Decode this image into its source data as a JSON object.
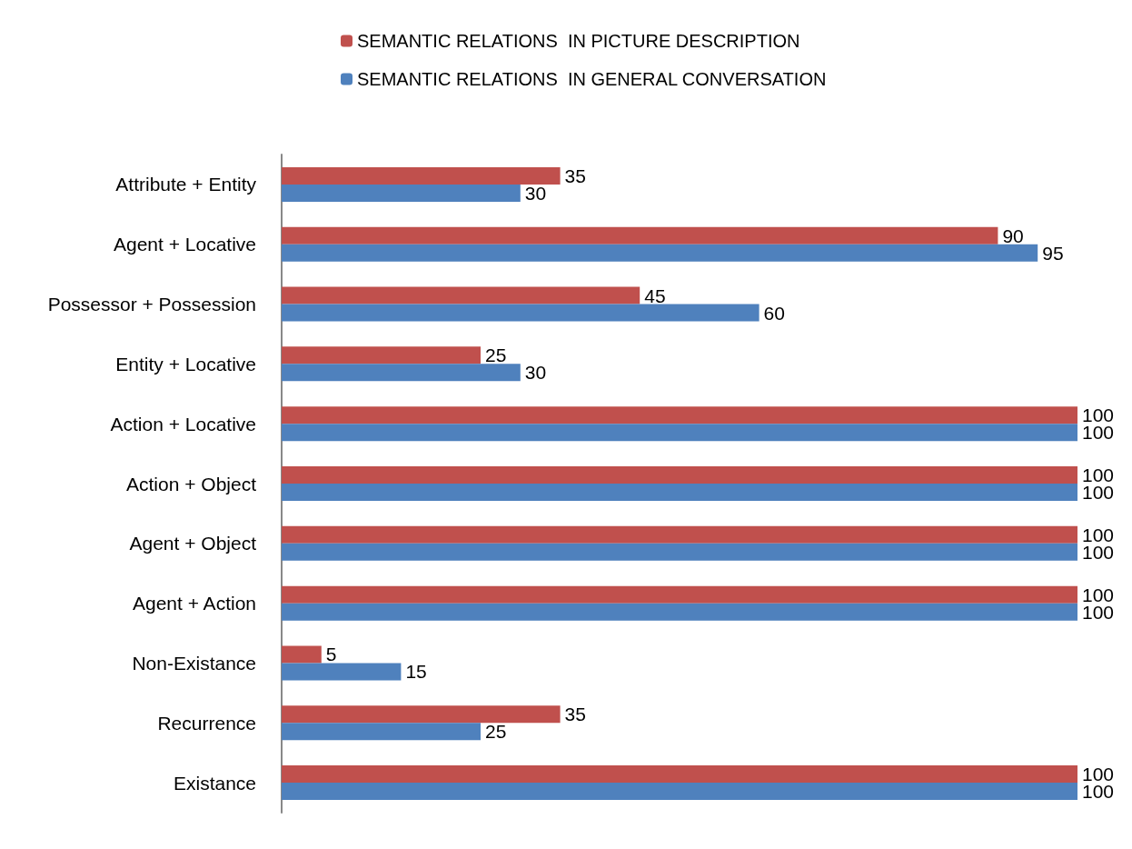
{
  "chart_data": {
    "type": "bar",
    "orientation": "horizontal",
    "categories": [
      "Attribute + Entity",
      "Agent + Locative",
      "Possessor + Possession",
      "Entity + Locative",
      "Action + Locative",
      "Action + Object",
      "Agent + Object",
      "Agent + Action",
      "Non-Existance",
      "Recurrence",
      "Existance"
    ],
    "series": [
      {
        "name": "SEMANTIC RELATIONS  IN PICTURE DESCRIPTION",
        "color": "#c0504d",
        "values": [
          35,
          90,
          45,
          25,
          100,
          100,
          100,
          100,
          5,
          35,
          100
        ]
      },
      {
        "name": "SEMANTIC RELATIONS  IN GENERAL CONVERSATION",
        "color": "#4f81bd",
        "values": [
          30,
          95,
          60,
          30,
          100,
          100,
          100,
          100,
          15,
          25,
          100
        ]
      }
    ],
    "data_labels": true,
    "legend": "top"
  }
}
